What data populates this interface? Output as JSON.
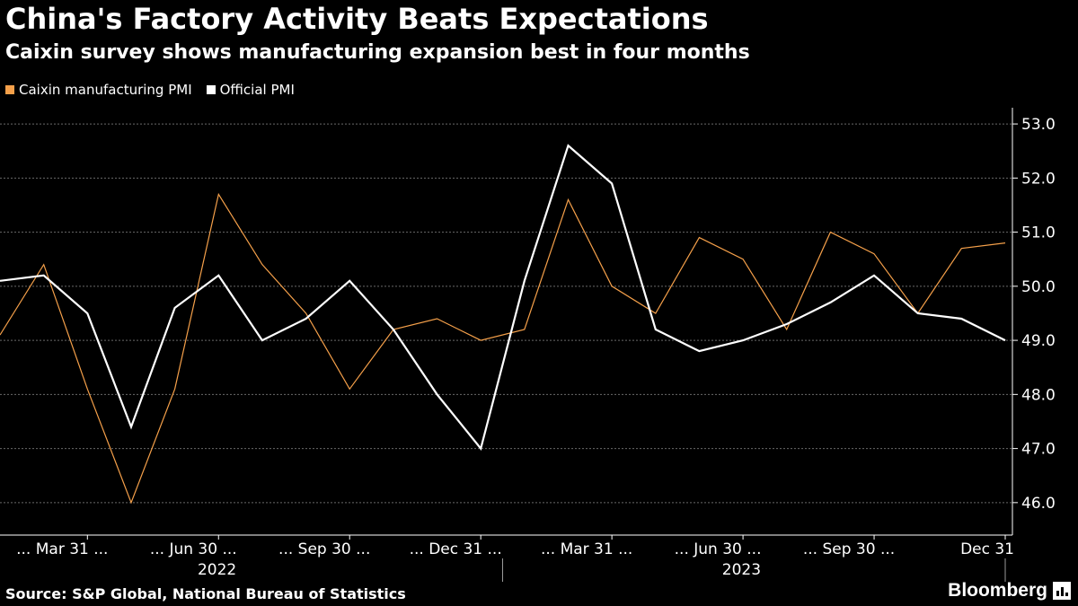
{
  "header": {
    "title": "China's Factory Activity Beats Expectations",
    "subtitle": "Caixin survey shows manufacturing expansion best in four months"
  },
  "footer": {
    "source": "Source: S&P Global, National Bureau of Statistics",
    "brand": "Bloomberg"
  },
  "colors": {
    "background": "#000000",
    "caixin": "#f5a04a",
    "official": "#ffffff",
    "grid": "#6a6a6a",
    "axis": "#ffffff"
  },
  "chart_data": {
    "type": "line",
    "title": "China's Factory Activity Beats Expectations",
    "subtitle": "Caixin survey shows manufacturing expansion best in four months",
    "x": [
      "2022-01",
      "2022-02",
      "2022-03",
      "2022-04",
      "2022-05",
      "2022-06",
      "2022-07",
      "2022-08",
      "2022-09",
      "2022-10",
      "2022-11",
      "2022-12",
      "2023-01",
      "2023-02",
      "2023-03",
      "2023-04",
      "2023-05",
      "2023-06",
      "2023-07",
      "2023-08",
      "2023-09",
      "2023-10",
      "2023-11",
      "2023-12"
    ],
    "series": [
      {
        "name": "Caixin manufacturing PMI",
        "color": "#f5a04a",
        "values": [
          49.1,
          50.4,
          48.1,
          46.0,
          48.1,
          51.7,
          50.4,
          49.5,
          48.1,
          49.2,
          49.4,
          49.0,
          49.2,
          51.6,
          50.0,
          49.5,
          50.9,
          50.5,
          49.2,
          51.0,
          50.6,
          49.5,
          50.7,
          50.8
        ]
      },
      {
        "name": "Official PMI",
        "color": "#ffffff",
        "values": [
          50.1,
          50.2,
          49.5,
          47.4,
          49.6,
          50.2,
          49.0,
          49.4,
          50.1,
          49.2,
          48.0,
          47.0,
          50.1,
          52.6,
          51.9,
          49.2,
          48.8,
          49.0,
          49.3,
          49.7,
          50.2,
          49.5,
          49.4,
          49.0
        ]
      }
    ],
    "y_ticks": [
      "53.0",
      "52.0",
      "51.0",
      "50.0",
      "49.0",
      "48.0",
      "47.0",
      "46.0"
    ],
    "ylim": [
      45.4,
      53.3
    ],
    "x_ticks": [
      {
        "index": 2,
        "label": "... Mar 31 ..."
      },
      {
        "index": 5,
        "label": "... Jun 30 ..."
      },
      {
        "index": 8,
        "label": "... Sep 30 ..."
      },
      {
        "index": 11,
        "label": "... Dec 31 ..."
      },
      {
        "index": 14,
        "label": "... Mar 31 ..."
      },
      {
        "index": 17,
        "label": "... Jun 30 ..."
      },
      {
        "index": 20,
        "label": "... Sep 30 ..."
      },
      {
        "index": 23,
        "label": "Dec 31"
      }
    ],
    "year_labels": [
      {
        "label": "2022",
        "center": 5.5
      },
      {
        "label": "2023",
        "center": 17.5
      }
    ],
    "grid": true,
    "legend": "top-left",
    "y_axis_side": "right"
  }
}
